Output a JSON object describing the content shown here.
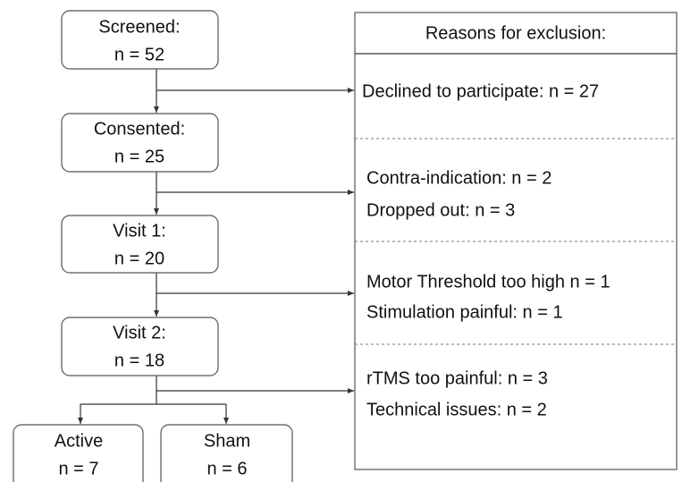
{
  "nodes": [
    {
      "title": "Screened:",
      "count": "n = 52"
    },
    {
      "title": "Consented:",
      "count": "n = 25"
    },
    {
      "title": "Visit 1:",
      "count": "n = 20"
    },
    {
      "title": "Visit 2:",
      "count": "n = 18"
    },
    {
      "title": "Active",
      "count": "n = 7"
    },
    {
      "title": "Sham",
      "count": "n = 6"
    }
  ],
  "exclusions": {
    "title": "Reasons for exclusion:",
    "groups": [
      [
        "Declined to participate: n = 27"
      ],
      [
        "Contra-indication: n = 2",
        "Dropped out: n = 3"
      ],
      [
        "Motor Threshold too high n = 1",
        "Stimulation painful: n = 1"
      ],
      [
        "rTMS too painful: n = 3",
        "Technical issues: n = 2"
      ]
    ]
  }
}
